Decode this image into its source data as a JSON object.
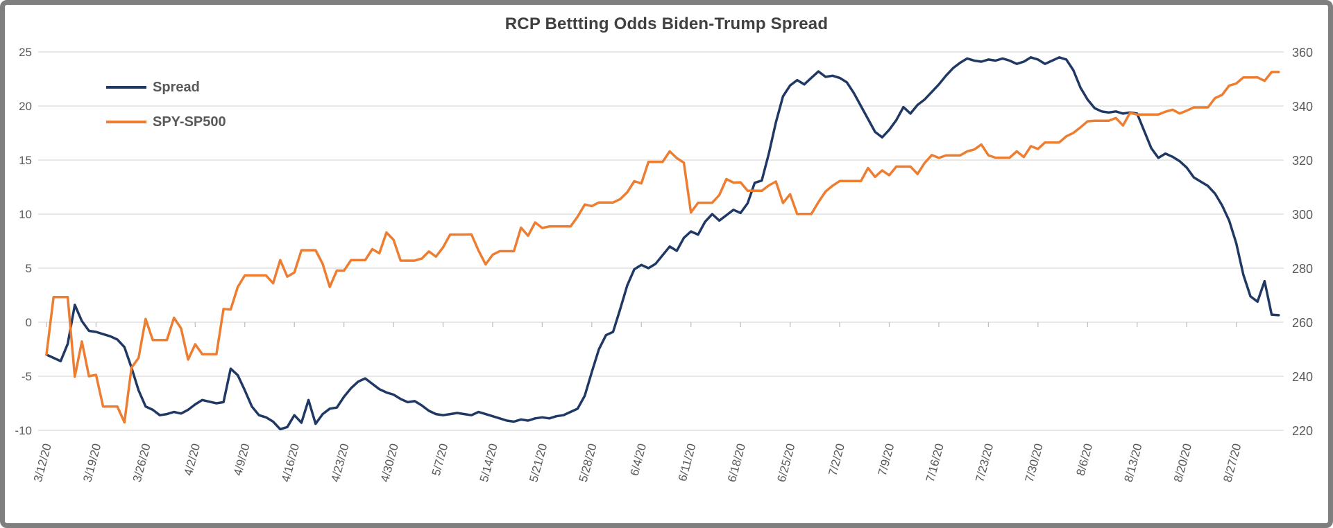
{
  "title": "RCP Bettting Odds Biden-Trump Spread",
  "legend": {
    "items": [
      {
        "label": "Spread",
        "color": "#1F3864"
      },
      {
        "label": "SPY-SP500",
        "color": "#ED7D31"
      }
    ]
  },
  "colors": {
    "spread_line": "#1F3864",
    "spy_line": "#ED7D31",
    "gridline": "#D9D9D9",
    "axis_tick": "#BFBFBF",
    "axis_text": "#595959",
    "title_text": "#404040",
    "frame_border": "#7F7F7F"
  },
  "chart_data": {
    "type": "line",
    "title": "RCP Bettting Odds Biden-Trump Spread",
    "xlabel": "",
    "ylabel_left": "",
    "ylabel_right": "",
    "grid": true,
    "legend_position": "upper-left-inside",
    "x_start_date": "3/12/20",
    "x_end_date": "9/2/20",
    "x_tick_every_days": 7,
    "x_tick_labels": [
      "3/12/20",
      "3/19/20",
      "3/26/20",
      "4/2/20",
      "4/9/20",
      "4/16/20",
      "4/23/20",
      "4/30/20",
      "5/7/20",
      "5/14/20",
      "5/21/20",
      "5/28/20",
      "6/4/20",
      "6/11/20",
      "6/18/20",
      "6/25/20",
      "7/2/20",
      "7/9/20",
      "7/16/20",
      "7/23/20",
      "7/30/20",
      "8/6/20",
      "8/13/20",
      "8/20/20",
      "8/27/20"
    ],
    "y_left_ticks": [
      25,
      20,
      15,
      10,
      5,
      0,
      -5,
      -10
    ],
    "y_left_lim": [
      -10,
      25
    ],
    "y_right_ticks": [
      360,
      340,
      320,
      300,
      280,
      260,
      240,
      220
    ],
    "y_right_lim": [
      220,
      360
    ],
    "series": [
      {
        "name": "Spread",
        "axis": "left",
        "color": "#1F3864",
        "values": [
          -3.0,
          -3.3,
          -3.6,
          -2.0,
          1.6,
          0.1,
          -0.8,
          -0.9,
          -1.1,
          -1.3,
          -1.6,
          -2.3,
          -4.2,
          -6.3,
          -7.8,
          -8.1,
          -8.6,
          -8.5,
          -8.3,
          -8.45,
          -8.1,
          -7.6,
          -7.2,
          -7.35,
          -7.5,
          -7.4,
          -4.3,
          -4.9,
          -6.3,
          -7.8,
          -8.6,
          -8.8,
          -9.2,
          -9.9,
          -9.7,
          -8.6,
          -9.3,
          -7.2,
          -9.4,
          -8.5,
          -8.0,
          -7.9,
          -6.9,
          -6.1,
          -5.5,
          -5.2,
          -5.7,
          -6.2,
          -6.5,
          -6.7,
          -7.1,
          -7.4,
          -7.3,
          -7.7,
          -8.2,
          -8.5,
          -8.6,
          -8.5,
          -8.4,
          -8.5,
          -8.6,
          -8.3,
          -8.5,
          -8.7,
          -8.9,
          -9.1,
          -9.2,
          -9.0,
          -9.1,
          -8.9,
          -8.8,
          -8.9,
          -8.7,
          -8.6,
          -8.3,
          -8.0,
          -6.8,
          -4.6,
          -2.5,
          -1.2,
          -0.9,
          1.2,
          3.4,
          4.9,
          5.3,
          5.0,
          5.4,
          6.2,
          7.0,
          6.6,
          7.8,
          8.4,
          8.1,
          9.3,
          10.0,
          9.4,
          9.9,
          10.4,
          10.1,
          11.0,
          12.9,
          13.1,
          15.6,
          18.5,
          20.9,
          21.9,
          22.4,
          22.0,
          22.6,
          23.2,
          22.7,
          22.8,
          22.6,
          22.2,
          21.2,
          20.0,
          18.8,
          17.6,
          17.1,
          17.8,
          18.7,
          19.9,
          19.3,
          20.1,
          20.6,
          21.3,
          22.0,
          22.8,
          23.5,
          24.0,
          24.4,
          24.2,
          24.1,
          24.3,
          24.2,
          24.4,
          24.2,
          23.9,
          24.1,
          24.5,
          24.3,
          23.9,
          24.2,
          24.5,
          24.3,
          23.3,
          21.7,
          20.6,
          19.8,
          19.5,
          19.4,
          19.5,
          19.3,
          19.4,
          19.3,
          17.7,
          16.1,
          15.2,
          15.6,
          15.3,
          14.9,
          14.3,
          13.4,
          13.0,
          12.6,
          11.9,
          10.8,
          9.4,
          7.3,
          4.4,
          2.4,
          1.9,
          3.8,
          0.7,
          0.65
        ]
      },
      {
        "name": "SPY-SP500",
        "axis": "right",
        "color": "#ED7D31",
        "values": [
          248.11,
          269.32,
          269.32,
          269.32,
          239.85,
          252.86,
          240.0,
          240.51,
          228.8,
          228.8,
          228.8,
          222.95,
          243.15,
          246.79,
          261.2,
          253.42,
          253.42,
          253.42,
          261.65,
          257.75,
          246.15,
          251.83,
          248.19,
          248.19,
          248.19,
          264.86,
          264.7,
          273.03,
          277.32,
          277.32,
          277.32,
          277.32,
          274.41,
          282.99,
          276.88,
          278.4,
          286.64,
          286.64,
          286.64,
          281.59,
          273.04,
          279.1,
          279.08,
          282.97,
          282.97,
          282.97,
          287.05,
          285.52,
          293.21,
          290.48,
          282.79,
          282.79,
          282.79,
          283.57,
          286.19,
          284.27,
          287.68,
          292.44,
          292.44,
          292.44,
          292.5,
          286.51,
          281.4,
          284.97,
          286.28,
          286.28,
          286.28,
          295.0,
          291.97,
          296.93,
          294.88,
          295.44,
          295.44,
          295.44,
          295.44,
          299.07,
          303.53,
          302.97,
          304.32,
          304.32,
          304.32,
          305.55,
          308.08,
          312.18,
          311.36,
          319.34,
          319.34,
          319.34,
          323.22,
          320.74,
          319.02,
          300.61,
          304.21,
          304.21,
          304.21,
          307.05,
          312.96,
          311.66,
          311.78,
          308.64,
          308.64,
          308.64,
          310.62,
          312.05,
          304.09,
          307.35,
          300.05,
          300.05,
          300.05,
          304.46,
          308.36,
          310.52,
          312.23,
          312.23,
          312.23,
          312.23,
          317.05,
          313.78,
          316.18,
          314.38,
          317.59,
          317.59,
          317.59,
          314.84,
          318.92,
          321.85,
          320.79,
          321.72,
          321.72,
          321.72,
          323.22,
          323.89,
          325.78,
          321.78,
          320.88,
          320.88,
          320.88,
          323.22,
          321.12,
          325.12,
          324.12,
          326.52,
          326.52,
          326.52,
          328.79,
          330.06,
          332.11,
          334.33,
          334.57,
          334.57,
          334.57,
          335.57,
          332.8,
          337.44,
          336.84,
          336.84,
          336.84,
          336.84,
          337.91,
          338.64,
          337.23,
          338.28,
          339.48,
          339.48,
          339.48,
          342.92,
          344.12,
          347.57,
          348.33,
          350.58,
          350.58,
          350.58,
          349.31,
          352.6,
          352.6
        ]
      }
    ]
  }
}
